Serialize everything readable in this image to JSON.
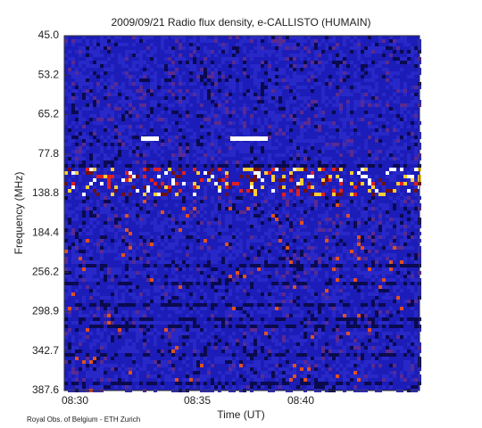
{
  "chart_data": {
    "type": "heatmap",
    "title": "2009/09/21  Radio flux density, e-CALLISTO (HUMAIN)",
    "xlabel": "Time (UT)",
    "ylabel": "Frequency (MHz)",
    "footer": "Royal Obs. of Belgium - ETH Zurich",
    "xticks": [
      "08:30",
      "08:35",
      "08:40"
    ],
    "ylim": [
      45.0,
      387.6
    ],
    "yticks": [
      {
        "value": 45.0,
        "label": "45.0"
      },
      {
        "value": 53.2,
        "label": "53.2"
      },
      {
        "value": 65.2,
        "label": "65.2"
      },
      {
        "value": 77.8,
        "label": "77.8"
      },
      {
        "value": 138.8,
        "label": "138.8"
      },
      {
        "value": 184.4,
        "label": "184.4"
      },
      {
        "value": 256.2,
        "label": "256.2"
      },
      {
        "value": 298.9,
        "label": "298.9"
      },
      {
        "value": 342.7,
        "label": "342.7"
      },
      {
        "value": 387.6,
        "label": "387.6"
      }
    ]
  }
}
